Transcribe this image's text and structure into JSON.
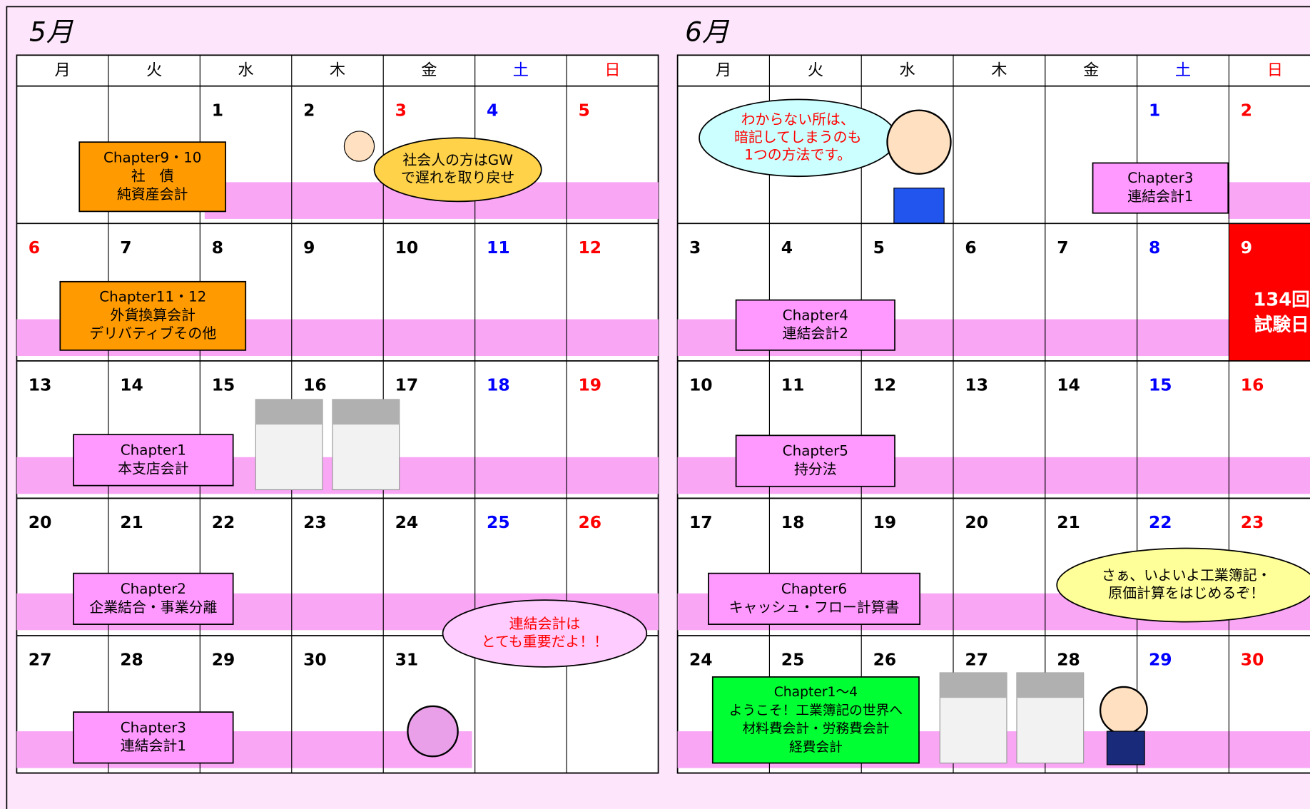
{
  "months": [
    {
      "title": "5月",
      "weekdays": [
        "月",
        "火",
        "水",
        "木",
        "金",
        "土",
        "日"
      ],
      "weeks": [
        [
          null,
          null,
          1,
          2,
          3,
          4,
          5
        ],
        [
          6,
          7,
          8,
          9,
          10,
          11,
          12
        ],
        [
          13,
          14,
          15,
          16,
          17,
          18,
          19
        ],
        [
          20,
          21,
          22,
          23,
          24,
          25,
          26
        ],
        [
          27,
          28,
          29,
          30,
          31,
          null,
          null
        ]
      ],
      "red_days": [
        3,
        4,
        5,
        6
      ],
      "events": [
        {
          "lines": [
            "Chapter9・10",
            "社　債",
            "純資産会計"
          ],
          "color": "#ff9a00"
        },
        {
          "lines": [
            "Chapter11・12",
            "外貨換算会計",
            "デリバティブその他"
          ],
          "color": "#ff9a00"
        },
        {
          "lines": [
            "Chapter1",
            "本支店会計"
          ],
          "color": "#ff99ff"
        },
        {
          "lines": [
            "Chapter2",
            "企業結合・事業分離"
          ],
          "color": "#ff99ff"
        },
        {
          "lines": [
            "Chapter3",
            "連結会計1"
          ],
          "color": "#ff99ff"
        }
      ],
      "bubbles": [
        {
          "lines": [
            "社会人の方はGW",
            "で遅れを取り戻せ"
          ],
          "color": "#ffd24a",
          "text_color": "#000000"
        },
        {
          "lines": [
            "連結会計は",
            "とても重要だよ！！"
          ],
          "color": "#ffccff",
          "text_color": "#ff0000"
        }
      ]
    },
    {
      "title": "6月",
      "weekdays": [
        "月",
        "火",
        "水",
        "木",
        "金",
        "土",
        "日"
      ],
      "weeks": [
        [
          null,
          null,
          null,
          null,
          null,
          1,
          2
        ],
        [
          3,
          4,
          5,
          6,
          7,
          8,
          9
        ],
        [
          10,
          11,
          12,
          13,
          14,
          15,
          16
        ],
        [
          17,
          18,
          19,
          20,
          21,
          22,
          23
        ],
        [
          24,
          25,
          26,
          27,
          28,
          29,
          30
        ]
      ],
      "red_days": [],
      "exam": {
        "day": 9,
        "lines": [
          "134回",
          "試験日"
        ]
      },
      "events": [
        {
          "lines": [
            "Chapter3",
            "連結会計1"
          ],
          "color": "#ff99ff"
        },
        {
          "lines": [
            "Chapter4",
            "連結会計2"
          ],
          "color": "#ff99ff"
        },
        {
          "lines": [
            "Chapter5",
            "持分法"
          ],
          "color": "#ff99ff"
        },
        {
          "lines": [
            "Chapter6",
            "キャッシュ・フロー計算書"
          ],
          "color": "#ff99ff"
        },
        {
          "lines": [
            "Chapter1～4",
            "ようこそ！工業簿記の世界へ",
            "材料費会計・労務費会計",
            "経費会計"
          ],
          "color": "#00ff33"
        }
      ],
      "bubbles": [
        {
          "lines": [
            "わからない所は、",
            "暗記してしまうのも",
            "1つの方法です。"
          ],
          "color": "#ccffff",
          "text_color": "#ff0000"
        },
        {
          "lines": [
            "さぁ、いよいよ工業簿記・",
            "原価計算をはじめるぞ！"
          ],
          "color": "#ffff99",
          "text_color": "#000000"
        }
      ]
    }
  ]
}
